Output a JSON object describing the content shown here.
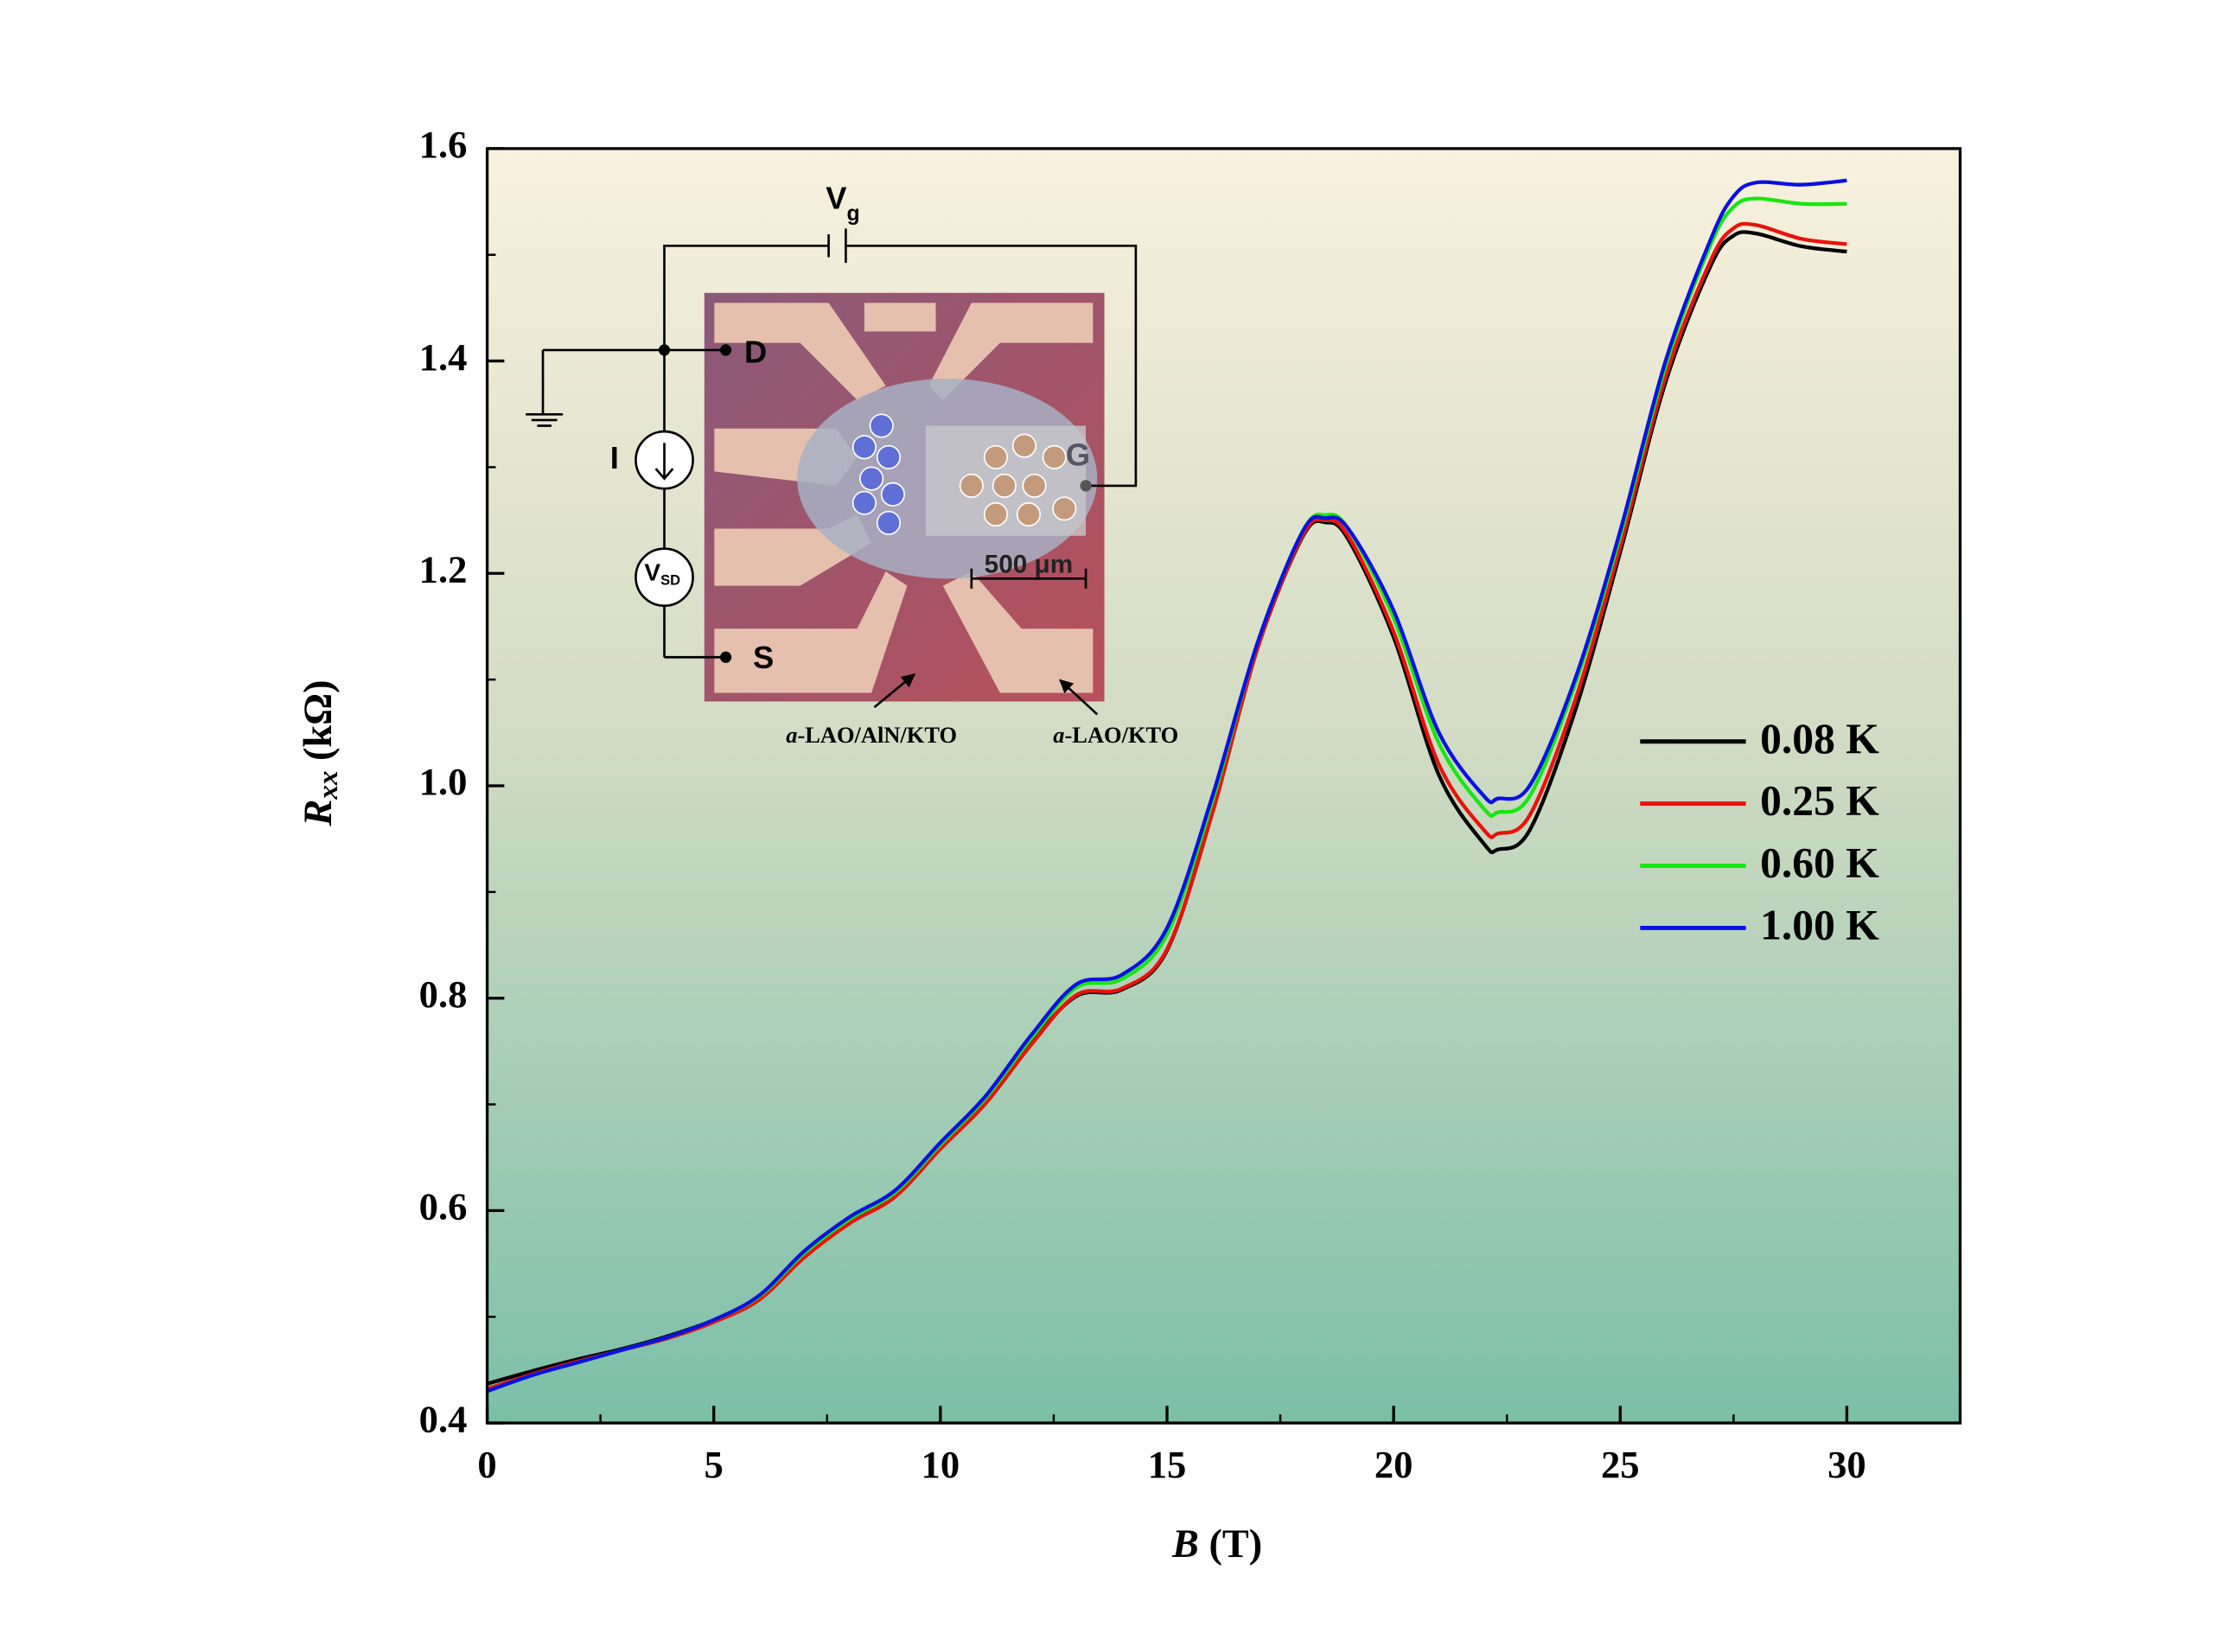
{
  "chart_data": {
    "type": "line",
    "xlabel": {
      "symbol": "B",
      "unit": "(T)"
    },
    "ylabel": {
      "symbol": "R",
      "sub": "xx",
      "unit": "(kΩ)"
    },
    "x": [
      0,
      1,
      2,
      3,
      4,
      5,
      6,
      7,
      8,
      9,
      10,
      11,
      12,
      13,
      14,
      15,
      16,
      17,
      18,
      18.5,
      19,
      20,
      21,
      22,
      22.3,
      23,
      24,
      25,
      26,
      27,
      27.5,
      28,
      29,
      30
    ],
    "series": [
      {
        "name": "0.08 K",
        "color": "#000000",
        "values": [
          0.437,
          0.449,
          0.46,
          0.47,
          0.482,
          0.497,
          0.518,
          0.558,
          0.59,
          0.615,
          0.66,
          0.703,
          0.758,
          0.802,
          0.808,
          0.845,
          0.975,
          1.13,
          1.235,
          1.248,
          1.232,
          1.14,
          1.01,
          0.945,
          0.94,
          0.958,
          1.07,
          1.22,
          1.38,
          1.49,
          1.518,
          1.52,
          1.508,
          1.503
        ]
      },
      {
        "name": "0.25 K",
        "color": "#e8130c",
        "values": [
          0.432,
          0.446,
          0.458,
          0.469,
          0.48,
          0.495,
          0.516,
          0.556,
          0.588,
          0.613,
          0.658,
          0.701,
          0.756,
          0.803,
          0.809,
          0.846,
          0.974,
          1.13,
          1.236,
          1.25,
          1.235,
          1.145,
          1.02,
          0.958,
          0.955,
          0.972,
          1.08,
          1.225,
          1.385,
          1.495,
          1.525,
          1.528,
          1.515,
          1.51
        ]
      },
      {
        "name": "0.60 K",
        "color": "#18e612",
        "values": [
          0.43,
          0.445,
          0.457,
          0.469,
          0.481,
          0.497,
          0.519,
          0.56,
          0.592,
          0.617,
          0.662,
          0.706,
          0.762,
          0.81,
          0.818,
          0.86,
          0.985,
          1.135,
          1.24,
          1.255,
          1.242,
          1.158,
          1.04,
          0.978,
          0.975,
          0.99,
          1.095,
          1.235,
          1.395,
          1.51,
          1.545,
          1.553,
          1.548,
          1.548
        ]
      },
      {
        "name": "1.00 K",
        "color": "#0a12e0",
        "values": [
          0.43,
          0.445,
          0.457,
          0.469,
          0.481,
          0.497,
          0.52,
          0.562,
          0.594,
          0.619,
          0.664,
          0.708,
          0.765,
          0.813,
          0.822,
          0.866,
          0.99,
          1.135,
          1.24,
          1.252,
          1.242,
          1.165,
          1.05,
          0.99,
          0.988,
          1.0,
          1.1,
          1.24,
          1.4,
          1.515,
          1.555,
          1.568,
          1.566,
          1.57
        ]
      }
    ],
    "xlim": [
      0,
      32.5
    ],
    "xticks": [
      0,
      5,
      10,
      15,
      20,
      25,
      30
    ],
    "ylim": [
      0.4,
      1.6
    ],
    "yticks": [
      {
        "value": 0.4,
        "label": "0.4"
      },
      {
        "value": 0.6,
        "label": "0.6"
      },
      {
        "value": 0.8,
        "label": "0.8"
      },
      {
        "value": 1.0,
        "label": "1.0"
      },
      {
        "value": 1.2,
        "label": "1.2"
      },
      {
        "value": 1.4,
        "label": "1.4"
      },
      {
        "value": 1.6,
        "label": "1.6"
      }
    ],
    "legend": "right",
    "annotations": {
      "vg": {
        "text": "V",
        "sub": "g"
      },
      "d": "D",
      "s": "S",
      "i": "I",
      "g": "G",
      "vsd": {
        "text": "V",
        "sub": "SD"
      },
      "scale": "500 μm",
      "label1": {
        "italic": "a",
        "text": "-LAO/AlN/KTO"
      },
      "label2": {
        "italic": "a",
        "text": "-LAO/KTO"
      }
    }
  }
}
